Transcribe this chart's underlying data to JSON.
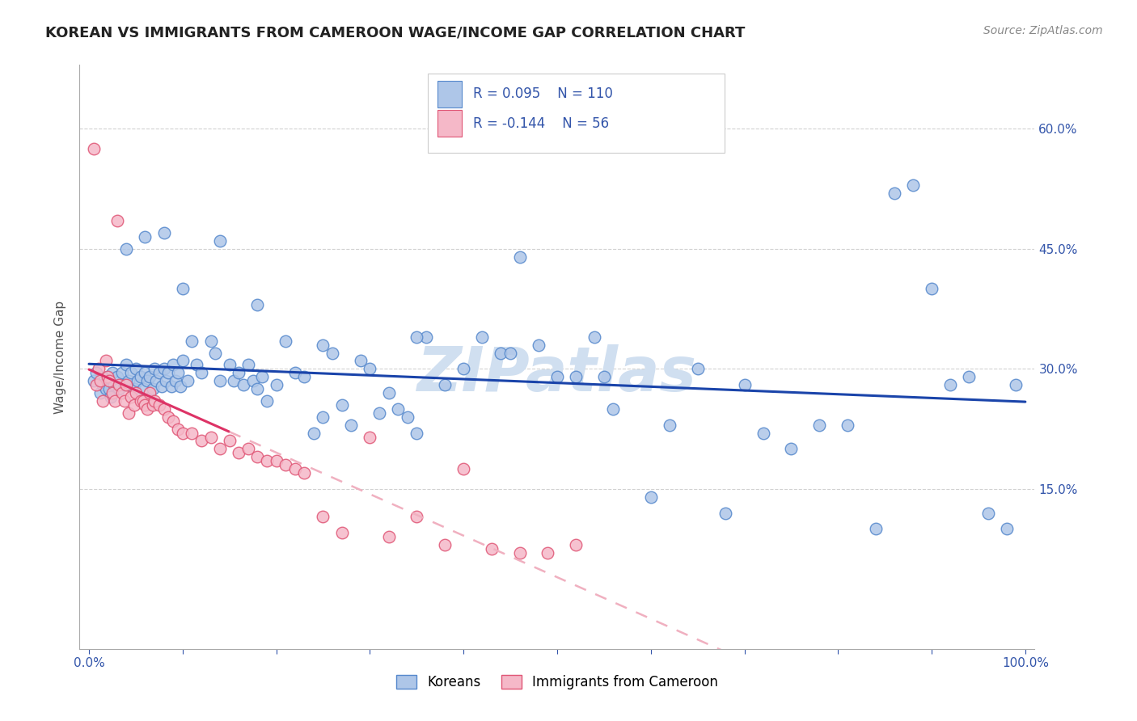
{
  "title": "KOREAN VS IMMIGRANTS FROM CAMEROON WAGE/INCOME GAP CORRELATION CHART",
  "source": "Source: ZipAtlas.com",
  "ylabel": "Wage/Income Gap",
  "xlim": [
    -0.01,
    1.01
  ],
  "ylim": [
    -0.05,
    0.68
  ],
  "yticks": [
    0.15,
    0.3,
    0.45,
    0.6
  ],
  "ytick_labels": [
    "15.0%",
    "30.0%",
    "45.0%",
    "60.0%"
  ],
  "xticks": [
    0.0,
    0.1,
    0.2,
    0.3,
    0.4,
    0.5,
    0.6,
    0.7,
    0.8,
    0.9,
    1.0
  ],
  "xtick_labels": [
    "0.0%",
    "",
    "",
    "",
    "",
    "",
    "",
    "",
    "",
    "",
    "100.0%"
  ],
  "korean_color": "#aec6e8",
  "korean_edge_color": "#5588cc",
  "cameroon_color": "#f5b8c8",
  "cameroon_edge_color": "#e05575",
  "trend_korean_color": "#1a44aa",
  "trend_cameroon_solid_color": "#dd3366",
  "trend_cameroon_dashed_color": "#f0b0c0",
  "legend_r_korean": "R = 0.095",
  "legend_n_korean": "N = 110",
  "legend_r_cameroon": "R = -0.144",
  "legend_n_cameroon": "N = 56",
  "legend_label_korean": "Koreans",
  "legend_label_cameroon": "Immigrants from Cameroon",
  "korean_x": [
    0.005,
    0.008,
    0.012,
    0.015,
    0.018,
    0.02,
    0.022,
    0.023,
    0.025,
    0.027,
    0.03,
    0.032,
    0.035,
    0.038,
    0.04,
    0.042,
    0.045,
    0.048,
    0.05,
    0.052,
    0.055,
    0.058,
    0.06,
    0.062,
    0.065,
    0.068,
    0.07,
    0.072,
    0.075,
    0.078,
    0.08,
    0.082,
    0.085,
    0.088,
    0.09,
    0.092,
    0.095,
    0.098,
    0.1,
    0.105,
    0.11,
    0.115,
    0.12,
    0.13,
    0.135,
    0.14,
    0.15,
    0.155,
    0.16,
    0.165,
    0.17,
    0.175,
    0.18,
    0.185,
    0.19,
    0.2,
    0.21,
    0.22,
    0.23,
    0.24,
    0.25,
    0.26,
    0.27,
    0.28,
    0.29,
    0.3,
    0.31,
    0.32,
    0.33,
    0.34,
    0.35,
    0.36,
    0.38,
    0.4,
    0.42,
    0.44,
    0.46,
    0.48,
    0.5,
    0.52,
    0.54,
    0.56,
    0.6,
    0.62,
    0.65,
    0.68,
    0.7,
    0.72,
    0.75,
    0.78,
    0.81,
    0.84,
    0.86,
    0.88,
    0.9,
    0.92,
    0.94,
    0.96,
    0.98,
    0.99,
    0.04,
    0.06,
    0.08,
    0.1,
    0.14,
    0.18,
    0.25,
    0.35,
    0.45,
    0.55
  ],
  "korean_y": [
    0.285,
    0.295,
    0.27,
    0.28,
    0.275,
    0.29,
    0.275,
    0.265,
    0.295,
    0.28,
    0.29,
    0.275,
    0.295,
    0.28,
    0.305,
    0.285,
    0.295,
    0.275,
    0.3,
    0.285,
    0.29,
    0.275,
    0.295,
    0.285,
    0.29,
    0.275,
    0.3,
    0.285,
    0.295,
    0.278,
    0.3,
    0.285,
    0.295,
    0.278,
    0.305,
    0.285,
    0.295,
    0.278,
    0.31,
    0.285,
    0.335,
    0.305,
    0.295,
    0.335,
    0.32,
    0.285,
    0.305,
    0.285,
    0.295,
    0.28,
    0.305,
    0.285,
    0.275,
    0.29,
    0.26,
    0.28,
    0.335,
    0.295,
    0.29,
    0.22,
    0.24,
    0.32,
    0.255,
    0.23,
    0.31,
    0.3,
    0.245,
    0.27,
    0.25,
    0.24,
    0.22,
    0.34,
    0.28,
    0.3,
    0.34,
    0.32,
    0.44,
    0.33,
    0.29,
    0.29,
    0.34,
    0.25,
    0.14,
    0.23,
    0.3,
    0.12,
    0.28,
    0.22,
    0.2,
    0.23,
    0.23,
    0.1,
    0.52,
    0.53,
    0.4,
    0.28,
    0.29,
    0.12,
    0.1,
    0.28,
    0.45,
    0.465,
    0.47,
    0.4,
    0.46,
    0.38,
    0.33,
    0.34,
    0.32,
    0.29
  ],
  "cameroon_x": [
    0.005,
    0.008,
    0.01,
    0.012,
    0.015,
    0.018,
    0.02,
    0.022,
    0.025,
    0.028,
    0.03,
    0.032,
    0.035,
    0.038,
    0.04,
    0.042,
    0.045,
    0.048,
    0.05,
    0.055,
    0.058,
    0.06,
    0.062,
    0.065,
    0.068,
    0.07,
    0.075,
    0.08,
    0.085,
    0.09,
    0.095,
    0.1,
    0.11,
    0.12,
    0.13,
    0.14,
    0.15,
    0.16,
    0.17,
    0.18,
    0.19,
    0.2,
    0.21,
    0.22,
    0.23,
    0.25,
    0.27,
    0.3,
    0.32,
    0.35,
    0.38,
    0.4,
    0.43,
    0.46,
    0.49,
    0.52
  ],
  "cameroon_y": [
    0.575,
    0.28,
    0.3,
    0.285,
    0.26,
    0.31,
    0.29,
    0.285,
    0.27,
    0.26,
    0.485,
    0.28,
    0.27,
    0.26,
    0.28,
    0.245,
    0.265,
    0.255,
    0.27,
    0.26,
    0.26,
    0.255,
    0.25,
    0.27,
    0.255,
    0.26,
    0.255,
    0.25,
    0.24,
    0.235,
    0.225,
    0.22,
    0.22,
    0.21,
    0.215,
    0.2,
    0.21,
    0.195,
    0.2,
    0.19,
    0.185,
    0.185,
    0.18,
    0.175,
    0.17,
    0.115,
    0.095,
    0.215,
    0.09,
    0.115,
    0.08,
    0.175,
    0.075,
    0.07,
    0.07,
    0.08
  ],
  "background_color": "#ffffff",
  "grid_color": "#cccccc",
  "tick_color": "#3355aa",
  "title_color": "#222222",
  "title_fontsize": 13,
  "source_fontsize": 10,
  "label_fontsize": 11,
  "tick_fontsize": 11,
  "legend_fontsize": 12,
  "watermark_text": "ZIPatlas",
  "watermark_color": "#d0dff0",
  "watermark_fontsize": 55
}
